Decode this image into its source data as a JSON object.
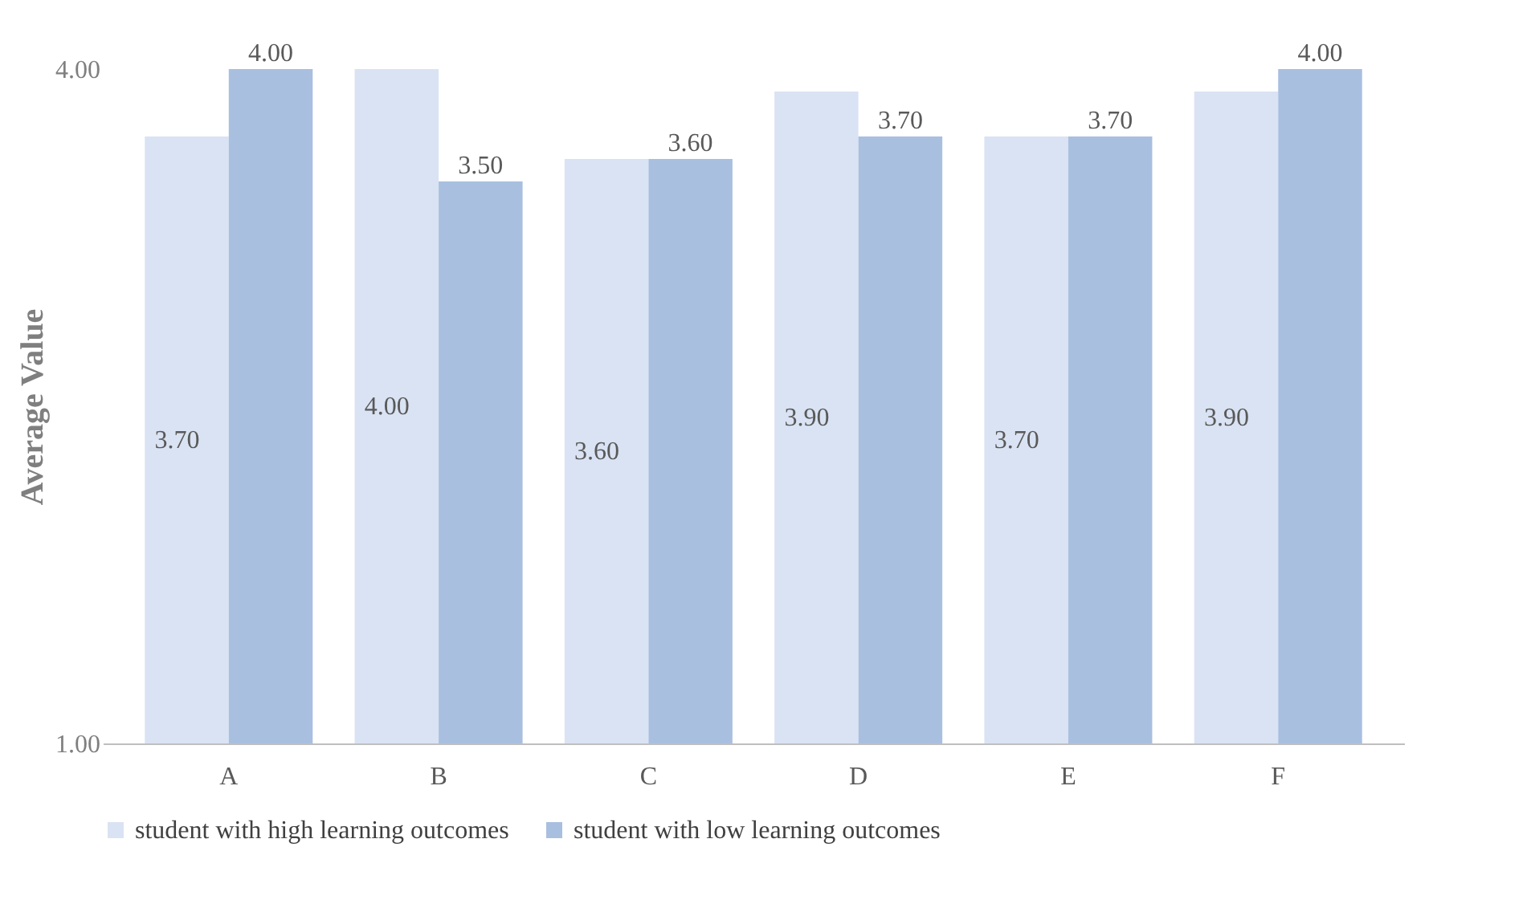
{
  "chart_data": {
    "type": "bar",
    "ylabel": "Average Value",
    "categories": [
      "A",
      "B",
      "C",
      "D",
      "E",
      "F"
    ],
    "series": [
      {
        "name": "student with high learning outcomes",
        "color": "#dae3f3",
        "values": [
          3.7,
          4.0,
          3.6,
          3.9,
          3.7,
          3.9
        ],
        "value_labels": [
          "3.70",
          "4.00",
          "3.60",
          "3.90",
          "3.70",
          "3.90"
        ]
      },
      {
        "name": "student with low learning outcomes",
        "color": "#a9bfe0",
        "values": [
          4.0,
          3.5,
          3.6,
          3.7,
          3.7,
          4.0
        ],
        "value_labels": [
          "4.00",
          "3.50",
          "3.60",
          "3.70",
          "3.70",
          "4.00"
        ]
      }
    ],
    "ylim": [
      1,
      4
    ],
    "yticks": [
      {
        "value": 1,
        "label": "1.00"
      },
      {
        "value": 4,
        "label": "4.00"
      }
    ],
    "grid": false,
    "legend": "bottom"
  }
}
